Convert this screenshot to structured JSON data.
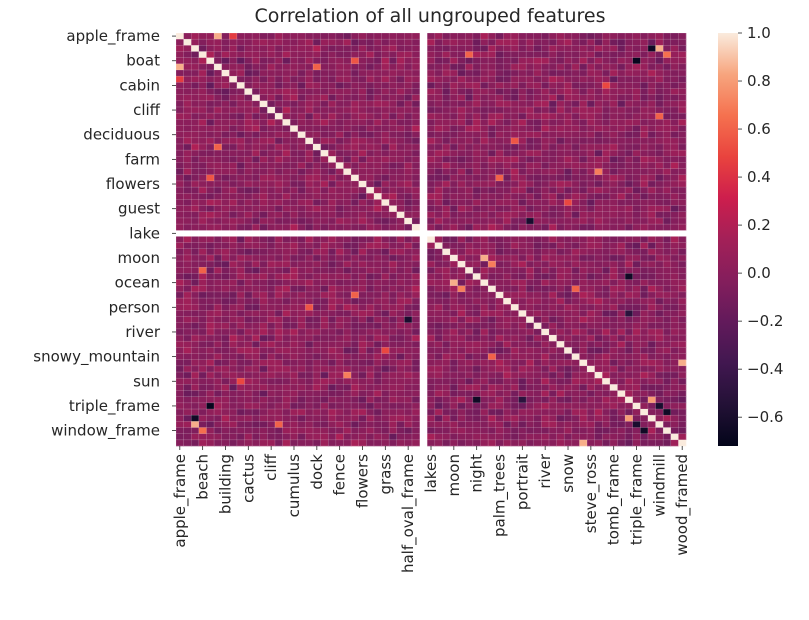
{
  "chart_data": {
    "type": "heatmap",
    "title": "Correlation of all ungrouped features",
    "n_features": 67,
    "gap_after_index": 32,
    "y_tick_labels": [
      "apple_frame",
      "boat",
      "cabin",
      "cliff",
      "deciduous",
      "farm",
      "flowers",
      "guest",
      "lake",
      "moon",
      "ocean",
      "person",
      "river",
      "snowy_mountain",
      "sun",
      "triple_frame",
      "window_frame"
    ],
    "y_tick_indices": [
      0,
      4,
      8,
      12,
      16,
      20,
      24,
      28,
      32,
      36,
      40,
      44,
      48,
      52,
      56,
      60,
      64
    ],
    "x_tick_labels": [
      "apple_frame",
      "beach",
      "building",
      "cactus",
      "cliff",
      "cumulus",
      "dock",
      "fence",
      "flowers",
      "grass",
      "half_oval_frame",
      "lakes",
      "moon",
      "night",
      "palm_trees",
      "portrait",
      "river",
      "snow",
      "steve_ross",
      "tomb_frame",
      "triple_frame",
      "windmill",
      "wood_framed"
    ],
    "x_tick_indices": [
      0,
      3,
      6,
      9,
      12,
      15,
      18,
      21,
      24,
      27,
      30,
      33,
      36,
      39,
      42,
      45,
      48,
      51,
      54,
      57,
      60,
      63,
      66
    ],
    "colorbar": {
      "min": -0.72,
      "max": 1.0,
      "ticks": [
        1.0,
        0.8,
        0.6,
        0.4,
        0.2,
        0.0,
        -0.2,
        -0.4,
        -0.6
      ],
      "tick_labels": [
        "1.0",
        "0.8",
        "0.6",
        "0.4",
        "0.2",
        "0.0",
        "−0.2",
        "−0.4",
        "−0.6"
      ]
    },
    "notable_correlations": [
      {
        "row": 5,
        "col": 0,
        "value": 0.85
      },
      {
        "row": 0,
        "col": 7,
        "value": 0.45
      },
      {
        "row": 4,
        "col": 23,
        "value": 0.55
      },
      {
        "row": 18,
        "col": 5,
        "value": 0.6
      },
      {
        "row": 22,
        "col": 55,
        "value": 0.7
      },
      {
        "row": 27,
        "col": 51,
        "value": 0.5
      },
      {
        "row": 36,
        "col": 40,
        "value": 0.85
      },
      {
        "row": 37,
        "col": 41,
        "value": 0.7
      },
      {
        "row": 2,
        "col": 63,
        "value": 0.85
      },
      {
        "row": 2,
        "col": 62,
        "value": -0.65
      },
      {
        "row": 3,
        "col": 38,
        "value": 0.6
      },
      {
        "row": 30,
        "col": 46,
        "value": -0.6
      },
      {
        "row": 44,
        "col": 17,
        "value": 0.55
      },
      {
        "row": 42,
        "col": 23,
        "value": 0.6
      },
      {
        "row": 52,
        "col": 41,
        "value": 0.6
      },
      {
        "row": 56,
        "col": 8,
        "value": 0.5
      },
      {
        "row": 59,
        "col": 39,
        "value": -0.65
      },
      {
        "row": 60,
        "col": 4,
        "value": -0.7
      },
      {
        "row": 59,
        "col": 45,
        "value": -0.5
      },
      {
        "row": 59,
        "col": 62,
        "value": 0.8
      },
      {
        "row": 60,
        "col": 63,
        "value": -0.6
      },
      {
        "row": 63,
        "col": 13,
        "value": 0.6
      },
      {
        "row": 64,
        "col": 3,
        "value": 0.65
      },
      {
        "row": 64,
        "col": 61,
        "value": -0.65
      },
      {
        "row": 66,
        "col": 53,
        "value": 0.85
      }
    ]
  }
}
